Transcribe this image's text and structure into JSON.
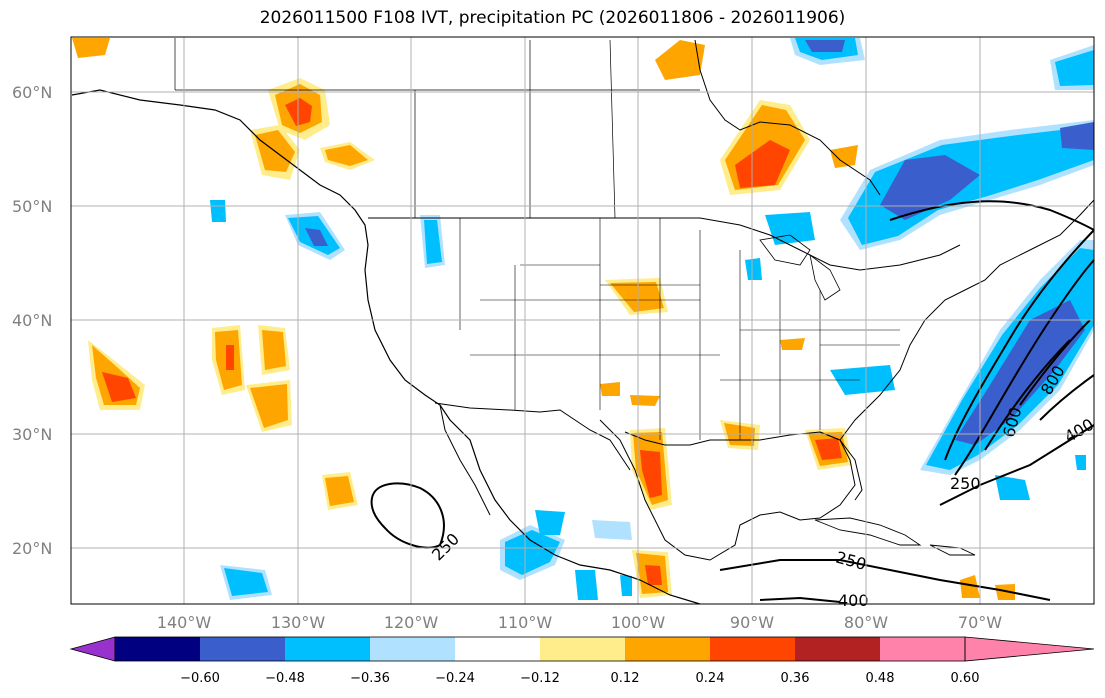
{
  "title": "2026011500 F108 IVT, precipitation PC (2026011806 - 2026011906)",
  "lat_labels": [
    "60°N",
    "50°N",
    "40°N",
    "30°N",
    "20°N"
  ],
  "lon_labels": [
    "140°W",
    "130°W",
    "120°W",
    "110°W",
    "100°W",
    "90°W",
    "80°W",
    "70°W"
  ],
  "contour_labels": [
    "250",
    "250",
    "250",
    "400",
    "400",
    "600",
    "800"
  ],
  "colorbar": {
    "labels": [
      "−0.60",
      "−0.48",
      "−0.36",
      "−0.24",
      "−0.12",
      "0.12",
      "0.24",
      "0.36",
      "0.48",
      "0.60"
    ],
    "colors": [
      "#9932cc",
      "#000080",
      "#3a5fcd",
      "#00bfff",
      "#b0e2ff",
      "#ffffff",
      "#ffec8b",
      "#ffa500",
      "#ff4500",
      "#b22222",
      "#ff82ab"
    ]
  },
  "colors": {
    "neg_light": "#b0e2ff",
    "neg_mid": "#00bfff",
    "neg_strong": "#3a5fcd",
    "pos_light": "#ffec8b",
    "pos_mid": "#ffa500",
    "pos_strong": "#ff4500",
    "grid": "#b0b0b0"
  }
}
